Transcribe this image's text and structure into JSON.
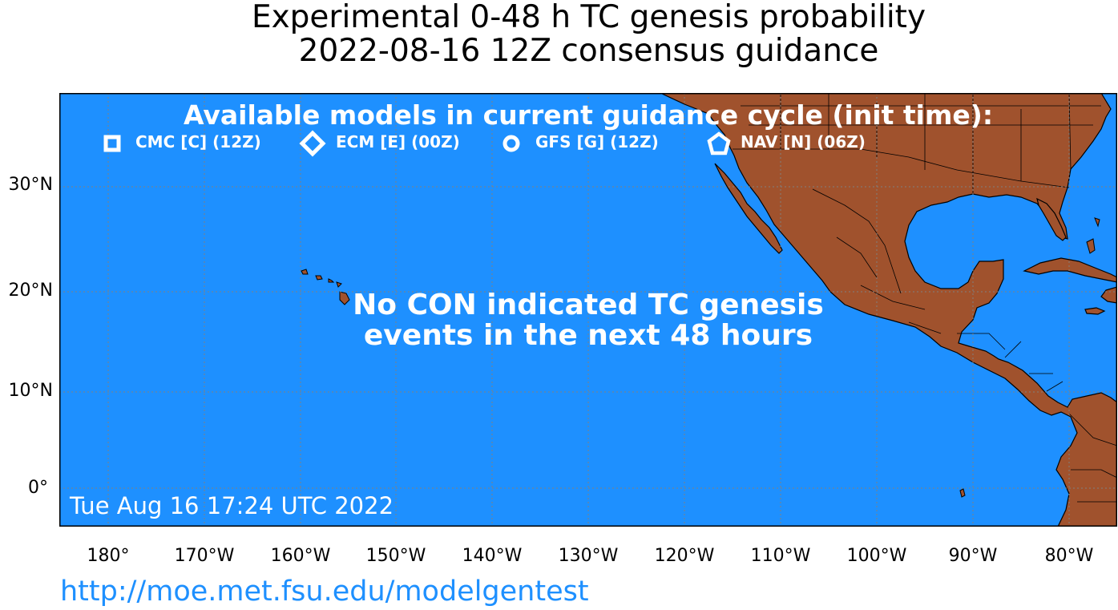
{
  "title_line1": "Experimental 0-48 h TC genesis probability",
  "title_line2": "2022-08-16 12Z consensus guidance",
  "legend": {
    "title": "Available models in current guidance cycle (init time):",
    "items": [
      {
        "icon": "square-marker-icon",
        "label": "CMC [C] (12Z)"
      },
      {
        "icon": "diamond-marker-icon",
        "label": "ECM [E] (00Z)"
      },
      {
        "icon": "circle-marker-icon",
        "label": "GFS [G] (12Z)"
      },
      {
        "icon": "pentagon-marker-icon",
        "label": "NAV [N] (06Z)"
      }
    ]
  },
  "notice_line1": "No CON indicated TC genesis",
  "notice_line2": "events in the next 48 hours",
  "timestamp": "Tue Aug 16 17:24 UTC 2022",
  "url": "http://moe.met.fsu.edu/modelgentest",
  "axes": {
    "lat_labels": [
      "30°N",
      "20°N",
      "10°N",
      "0°"
    ],
    "lon_labels": [
      "180°",
      "170°W",
      "160°W",
      "150°W",
      "140°W",
      "130°W",
      "120°W",
      "110°W",
      "100°W",
      "90°W",
      "80°W"
    ]
  },
  "colors": {
    "ocean": "#1e90ff",
    "land": "#a0522d",
    "gridline": "#808080",
    "text_on_map": "#ffffff",
    "url": "#1e90ff"
  }
}
